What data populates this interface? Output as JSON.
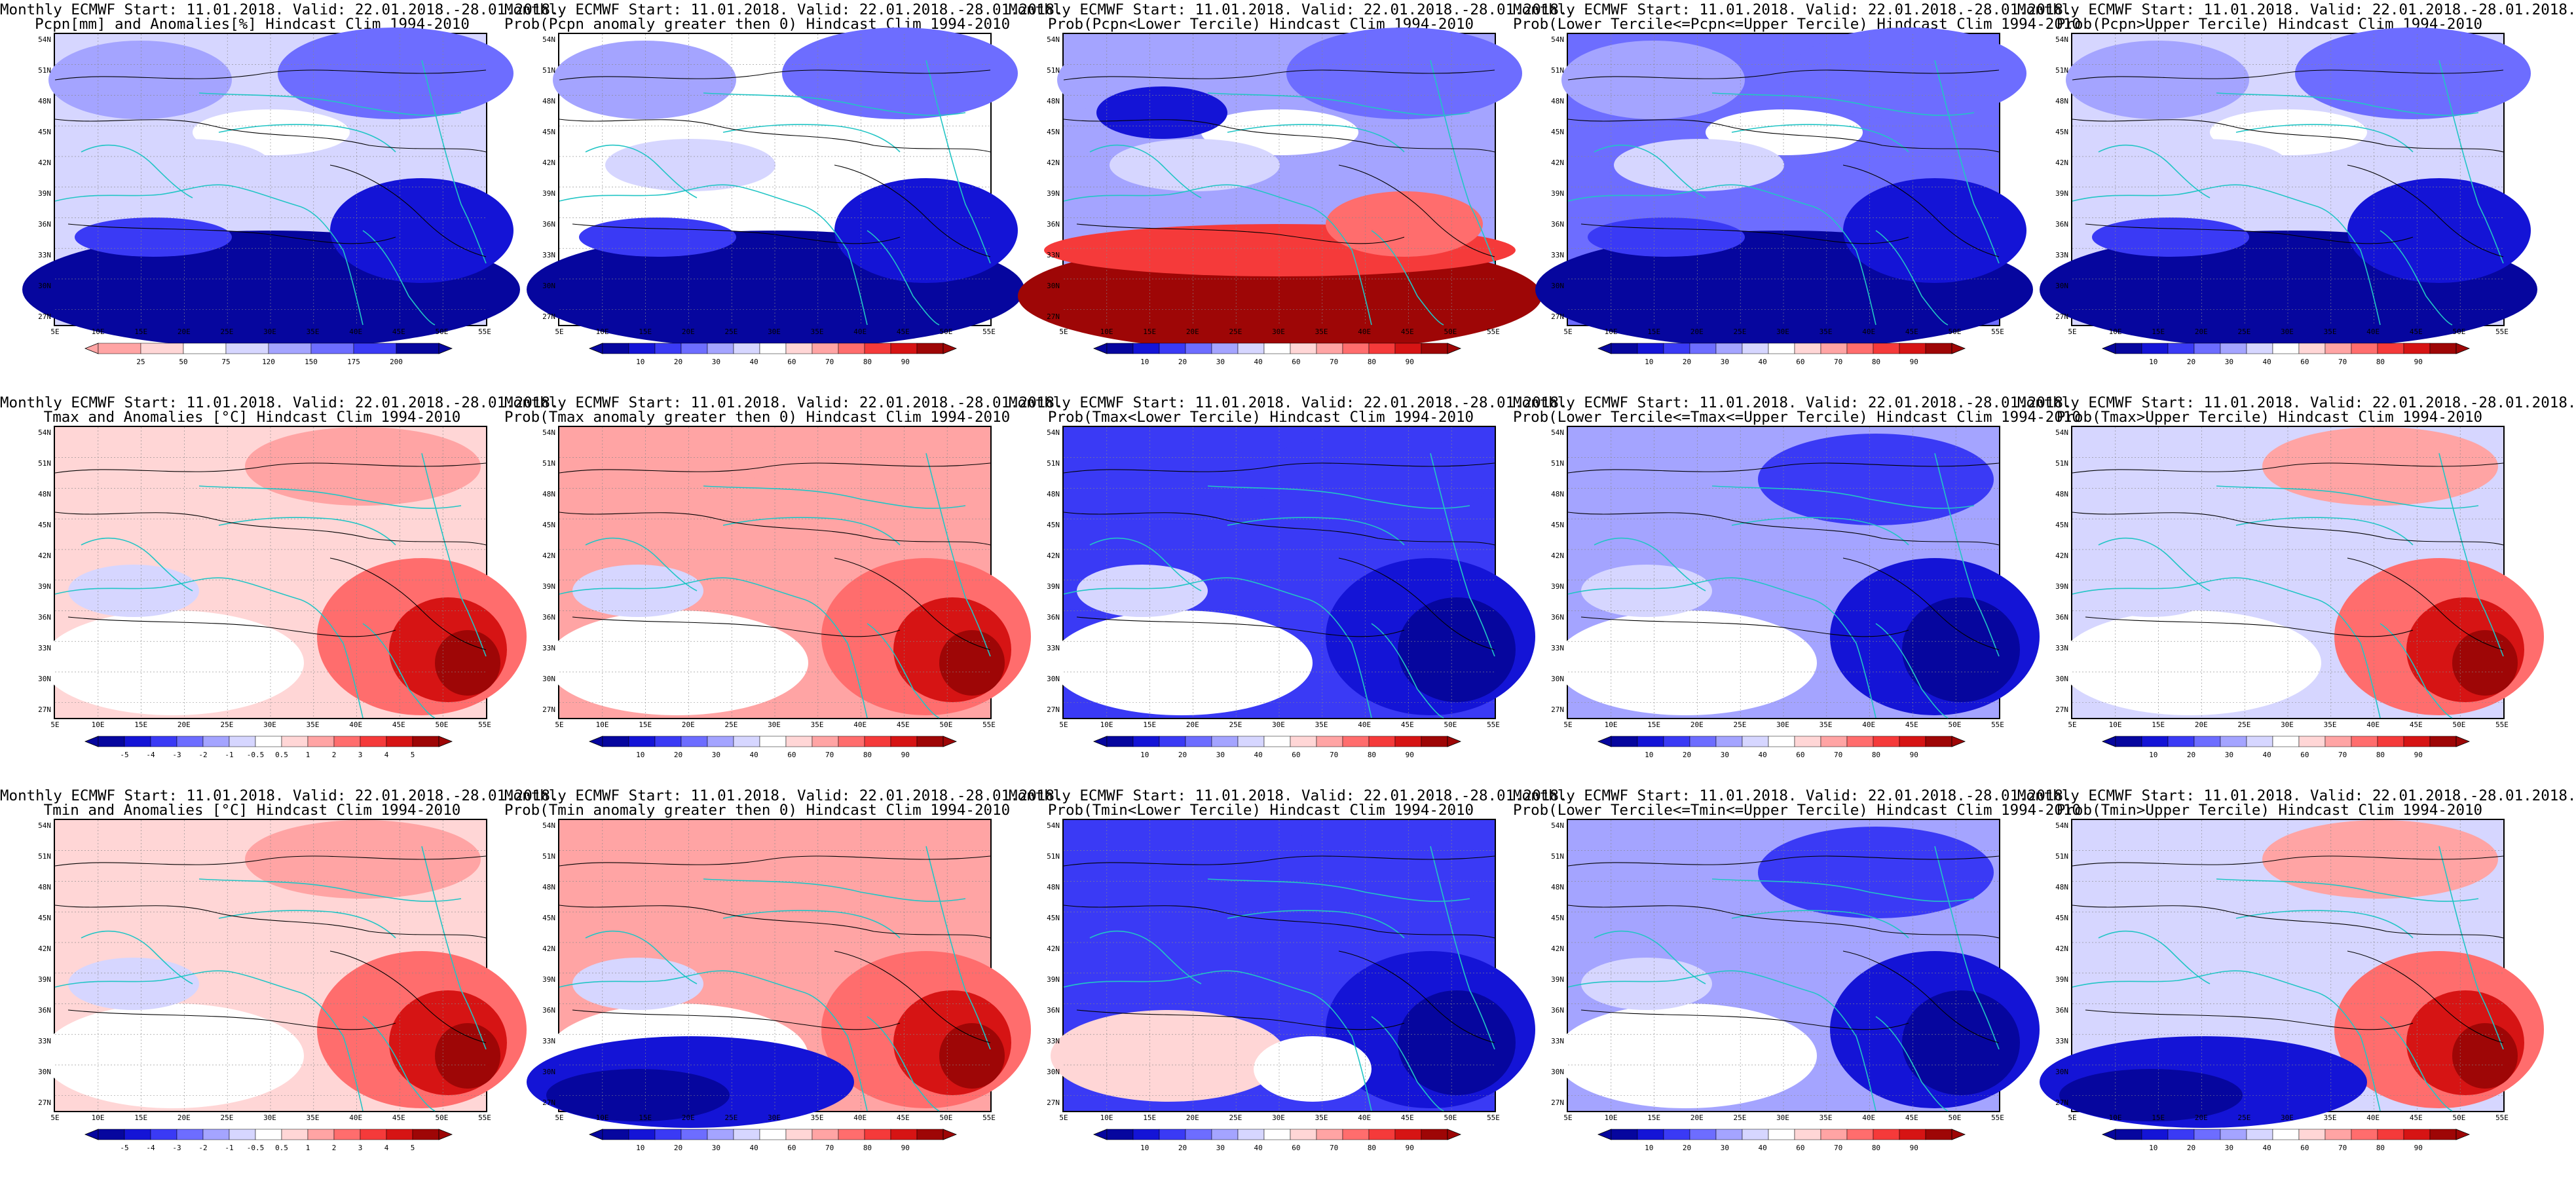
{
  "colors": {
    "blue_scale": [
      "#06069e",
      "#1414d6",
      "#3a3af5",
      "#6d6dff",
      "#a4a4ff",
      "#d6d6ff"
    ],
    "red_scale": [
      "#ffd6d6",
      "#ffa4a4",
      "#ff6d6d",
      "#f53a3a",
      "#d61414",
      "#9e0606"
    ],
    "coast": "#22c5c5",
    "contour": "#000000"
  },
  "axis": {
    "lat": [
      "54N",
      "51N",
      "48N",
      "45N",
      "42N",
      "39N",
      "36N",
      "33N",
      "30N",
      "27N"
    ],
    "lon": [
      "5E",
      "10E",
      "15E",
      "20E",
      "25E",
      "30E",
      "35E",
      "40E",
      "45E",
      "50E",
      "55E"
    ]
  },
  "colorbars": {
    "pcpn": [
      "25",
      "50",
      "75",
      "120",
      "150",
      "175",
      "200"
    ],
    "prob": [
      "10",
      "20",
      "30",
      "40",
      "60",
      "70",
      "80",
      "90"
    ],
    "anom": [
      "-5",
      "-4",
      "-3",
      "-2",
      "-1",
      "-0.5",
      "0.5",
      "1",
      "2",
      "3",
      "4",
      "5"
    ]
  },
  "panels": [
    {
      "line1": "Monthly ECMWF Start: 11.01.2018. Valid: 22.01.2018.-28.01.2018.",
      "line2": "Pcpn[mm] and Anomalies[%] Hindcast Clim 1994-2010",
      "field": "pcpn"
    },
    {
      "line1": "Monthly ECMWF Start: 11.01.2018. Valid: 22.01.2018.-28.01.2018.",
      "line2": "Prob(Pcpn anomaly greater then 0) Hindcast Clim 1994-2010",
      "field": "pcpn_pos"
    },
    {
      "line1": "Monthly ECMWF Start: 11.01.2018. Valid: 22.01.2018.-28.01.2018.",
      "line2": "Prob(Pcpn<Lower Tercile) Hindcast Clim 1994-2010",
      "field": "pcpn_low"
    },
    {
      "line1": "Monthly ECMWF Start: 11.01.2018. Valid: 22.01.2018.-28.01.2018.",
      "line2": "Prob(Lower Tercile<=Pcpn<=Upper Tercile) Hindcast Clim 1994-2010",
      "field": "pcpn_mid"
    },
    {
      "line1": "Monthly ECMWF Start: 11.01.2018. Valid: 22.01.2018.-28.01.2018.",
      "line2": "Prob(Pcpn>Upper Tercile) Hindcast Clim 1994-2010",
      "field": "pcpn_up"
    },
    {
      "line1": "Monthly ECMWF Start: 11.01.2018. Valid: 22.01.2018.-28.01.2018.",
      "line2": "Tmax and Anomalies [°C] Hindcast Clim 1994-2010",
      "field": "tmax"
    },
    {
      "line1": "Monthly ECMWF Start: 11.01.2018. Valid: 22.01.2018.-28.01.2018.",
      "line2": "Prob(Tmax anomaly greater then 0) Hindcast Clim 1994-2010",
      "field": "tmax_pos"
    },
    {
      "line1": "Monthly ECMWF Start: 11.01.2018. Valid: 22.01.2018.-28.01.2018.",
      "line2": "Prob(Tmax<Lower Tercile) Hindcast Clim 1994-2010",
      "field": "tmax_low"
    },
    {
      "line1": "Monthly ECMWF Start: 11.01.2018. Valid: 22.01.2018.-28.01.2018.",
      "line2": "Prob(Lower Tercile<=Tmax<=Upper Tercile) Hindcast Clim 1994-2010",
      "field": "tmax_mid"
    },
    {
      "line1": "Monthly ECMWF Start: 11.01.2018. Valid: 22.01.2018.-28.01.2018.",
      "line2": "Prob(Tmax>Upper Tercile) Hindcast Clim 1994-2010",
      "field": "tmax_up"
    },
    {
      "line1": "Monthly ECMWF Start: 11.01.2018. Valid: 22.01.2018.-28.01.2018.",
      "line2": "Tmin and Anomalies [°C] Hindcast Clim 1994-2010",
      "field": "tmin"
    },
    {
      "line1": "Monthly ECMWF Start: 11.01.2018. Valid: 22.01.2018.-28.01.2018.",
      "line2": "Prob(Tmin anomaly greater then 0) Hindcast Clim 1994-2010",
      "field": "tmin_pos"
    },
    {
      "line1": "Monthly ECMWF Start: 11.01.2018. Valid: 22.01.2018.-28.01.2018.",
      "line2": "Prob(Tmin<Lower Tercile) Hindcast Clim 1994-2010",
      "field": "tmin_low"
    },
    {
      "line1": "Monthly ECMWF Start: 11.01.2018. Valid: 22.01.2018.-28.01.2018.",
      "line2": "Prob(Lower Tercile<=Tmin<=Upper Tercile) Hindcast Clim 1994-2010",
      "field": "tmin_mid"
    },
    {
      "line1": "Monthly ECMWF Start: 11.01.2018. Valid: 22.01.2018.-28.01.2018.",
      "line2": "Prob(Tmin>Upper Tercile) Hindcast Clim 1994-2010",
      "field": "tmin_up"
    }
  ]
}
